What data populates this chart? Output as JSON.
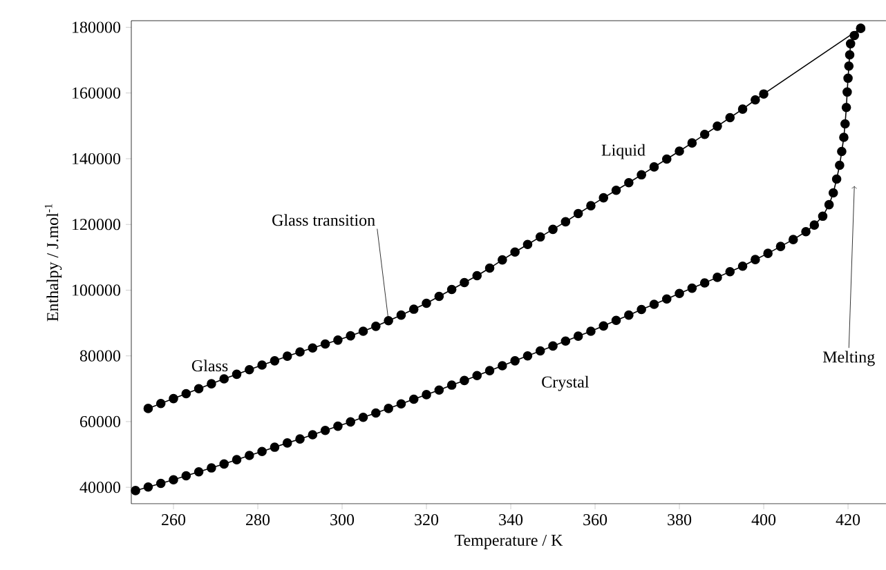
{
  "chart_data": {
    "type": "line",
    "xlabel": "Temperature / K",
    "ylabel": "Enthalpy / J.mol$^{-1}$",
    "xlim": [
      250,
      429
    ],
    "ylim": [
      35000,
      182000
    ],
    "xticks": [
      260,
      280,
      300,
      320,
      340,
      360,
      380,
      400,
      420
    ],
    "yticks": [
      40000,
      60000,
      80000,
      100000,
      120000,
      140000,
      160000,
      180000
    ],
    "marker": "circle",
    "line_style": "solid",
    "series": [
      {
        "color": "#000000",
        "x": [
          254,
          257,
          260,
          263,
          266,
          269,
          272,
          275,
          278,
          281,
          284,
          287,
          290,
          293,
          296,
          299,
          302,
          305,
          308,
          311,
          314,
          317,
          320,
          323,
          326,
          329,
          332,
          335,
          338,
          341,
          344,
          347,
          350,
          353,
          356,
          359,
          362,
          365,
          368,
          371,
          374,
          377,
          380,
          383,
          386,
          389,
          392,
          395,
          398,
          400,
          423
        ],
        "values": [
          64000,
          65500,
          67000,
          68500,
          70000,
          71500,
          73000,
          74400,
          75800,
          77200,
          78500,
          79900,
          81200,
          82400,
          83600,
          84800,
          86100,
          87500,
          89000,
          90700,
          92400,
          94200,
          96000,
          98100,
          100200,
          102300,
          104400,
          106700,
          109200,
          111600,
          113900,
          116200,
          118500,
          120800,
          123300,
          125700,
          128100,
          130400,
          132700,
          135100,
          137500,
          139900,
          142300,
          144800,
          147400,
          149900,
          152500,
          155100,
          157900,
          159700,
          179700
        ]
      },
      {
        "color": "#000000",
        "x": [
          251,
          254,
          257,
          260,
          263,
          266,
          269,
          272,
          275,
          278,
          281,
          284,
          287,
          290,
          293,
          296,
          299,
          302,
          305,
          308,
          311,
          314,
          317,
          320,
          323,
          326,
          329,
          332,
          335,
          338,
          341,
          344,
          347,
          350,
          353,
          356,
          359,
          362,
          365,
          368,
          371,
          374,
          377,
          380,
          383,
          386,
          389,
          392,
          395,
          398,
          401,
          404,
          407,
          410,
          412,
          414,
          415.5,
          416.5,
          417.3,
          418,
          418.5,
          419,
          419.3,
          419.6,
          419.8,
          420,
          420.2,
          420.4,
          420.6,
          421.5,
          423
        ],
        "values": [
          39000,
          40100,
          41200,
          42300,
          43500,
          44700,
          45900,
          47100,
          48400,
          49700,
          50900,
          52200,
          53500,
          54700,
          56000,
          57300,
          58600,
          59900,
          61300,
          62600,
          64000,
          65400,
          66800,
          68200,
          69600,
          71100,
          72500,
          74000,
          75500,
          77000,
          78500,
          80000,
          81500,
          83000,
          84500,
          86000,
          87500,
          89100,
          90800,
          92400,
          94100,
          95700,
          97300,
          99000,
          100600,
          102200,
          103900,
          105600,
          107300,
          109300,
          111200,
          113300,
          115400,
          117800,
          119800,
          122500,
          126000,
          129600,
          133800,
          138000,
          142200,
          146500,
          150600,
          155600,
          160300,
          164500,
          168200,
          171600,
          175000,
          177500,
          179700
        ]
      }
    ],
    "annotations": [
      {
        "text": "Glass transition",
        "x": 311,
        "y": 90700
      },
      "Glass",
      "Liquid",
      "Crystal",
      {
        "text": "Melting",
        "x": 421.5,
        "y": 131700
      }
    ]
  }
}
